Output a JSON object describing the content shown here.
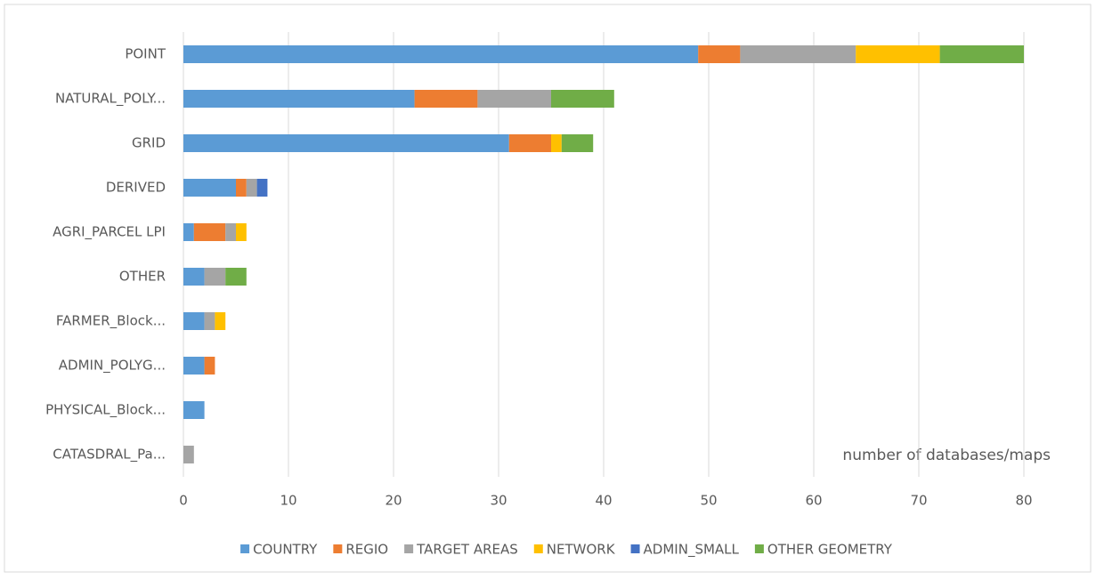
{
  "chart_data": {
    "type": "stacked_bar_horizontal",
    "categories": [
      "POINT",
      "NATURAL_POLY...",
      "GRID",
      "DERIVED",
      "AGRI_PARCEL LPI",
      "OTHER",
      "FARMER_Block...",
      "ADMIN_POLYG...",
      "PHYSICAL_Block...",
      "CATASDRAL_Pa..."
    ],
    "series": [
      {
        "name": "COUNTRY",
        "color": "#5b9bd5",
        "values": [
          49,
          22,
          31,
          5,
          1,
          2,
          2,
          2,
          2,
          0
        ]
      },
      {
        "name": "REGIO",
        "color": "#ed7d31",
        "values": [
          4,
          6,
          4,
          1,
          3,
          0,
          0,
          1,
          0,
          0
        ]
      },
      {
        "name": "TARGET AREAS",
        "color": "#a5a5a5",
        "values": [
          11,
          7,
          0,
          1,
          1,
          2,
          1,
          0,
          0,
          1
        ]
      },
      {
        "name": "NETWORK",
        "color": "#ffc000",
        "values": [
          8,
          0,
          1,
          0,
          1,
          0,
          1,
          0,
          0,
          0
        ]
      },
      {
        "name": "ADMIN_SMALL",
        "color": "#4472c4",
        "values": [
          0,
          0,
          0,
          1,
          0,
          0,
          0,
          0,
          0,
          0
        ]
      },
      {
        "name": "OTHER GEOMETRY",
        "color": "#70ad47",
        "values": [
          8,
          6,
          3,
          0,
          0,
          2,
          0,
          0,
          0,
          0
        ]
      }
    ],
    "xlim": [
      0,
      80
    ],
    "xticks": [
      0,
      10,
      20,
      30,
      40,
      50,
      60,
      70,
      80
    ],
    "grid": true,
    "annotation": "number of databases/maps",
    "legend": "bottom"
  }
}
